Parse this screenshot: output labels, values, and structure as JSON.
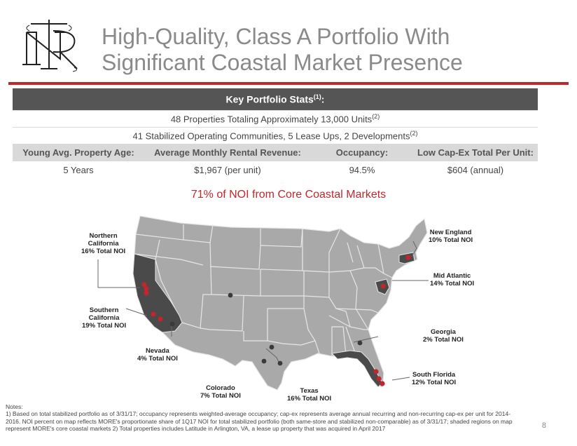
{
  "header": {
    "title_line1": "High-Quality, Class A Portfolio With",
    "title_line2": "Significant Coastal Market Presence"
  },
  "stats": {
    "heading": "Key Portfolio Stats",
    "heading_sup": "(1)",
    "heading_suffix": ":",
    "line1": "48 Properties Totaling Approximately 13,000 Units",
    "line1_sup": "(2)",
    "line2": "41 Stabilized Operating Communities, 5 Lease Ups, 2 Developments",
    "line2_sup": "(2)",
    "columns": [
      "Young Avg. Property Age:",
      "Average Monthly Rental Revenue:",
      "Occupancy:",
      "Low Cap-Ex Total Per Unit:"
    ],
    "values": [
      "5 Years",
      "$1,967 (per unit)",
      "94.5%",
      "$604 (annual)"
    ]
  },
  "map": {
    "title": "71% of NOI from Core Coastal Markets",
    "labels": {
      "northern_california": [
        "Northern",
        "California",
        "16% Total NOI"
      ],
      "southern_california": [
        "Southern",
        "California",
        "19% Total NOI"
      ],
      "nevada": [
        "Nevada",
        "4% Total NOI"
      ],
      "colorado": [
        "Colorado",
        "7% Total NOI"
      ],
      "texas": [
        "Texas",
        "16% Total NOI"
      ],
      "new_england": [
        "New England",
        "10% Total NOI"
      ],
      "mid_atlantic": [
        "Mid Atlantic",
        "14% Total NOI"
      ],
      "georgia": [
        "Georgia",
        "2% Total NOI"
      ],
      "south_florida": [
        "South Florida",
        "12% Total NOI"
      ]
    },
    "colors": {
      "states": "#a9a9a9",
      "borders": "#e6e6e6",
      "shaded": "#4a4a4a",
      "core_dot": "#c0272d",
      "other_dot": "#3a3a3a"
    }
  },
  "footer": {
    "notes_heading": "Notes:",
    "notes_line1": "1) Based on total stabilized portfolio as of 3/31/17; occupancy represents weighted-average occupancy; cap-ex represents average annual recurring and non-recurring cap-ex per unit for 2014-",
    "notes_line2": "2016. NOI percent on map reflects MORE's proportionate share of 1Q17 NOI for total stabilized portfolio (both same-store and stabilized non-comparable) as of 3/31/17; shaded regions on map",
    "notes_line3": "represent MORE's core coastal markets 2) Total properties includes Latitude in Arlington, VA, a lease up property that was acquired in April 2017",
    "page_number": "8"
  }
}
